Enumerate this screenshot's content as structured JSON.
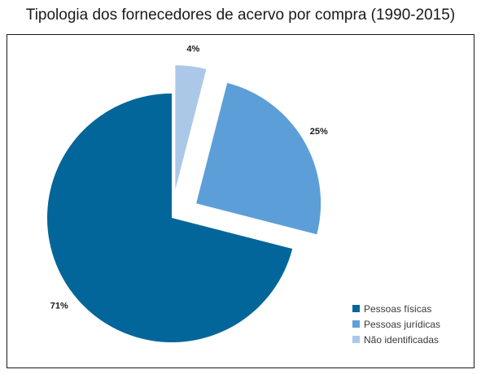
{
  "title": "Tipologia dos fornecedores de acervo por compra (1990-2015)",
  "chart_data": {
    "type": "pie",
    "title": "Tipologia dos fornecedores de acervo por compra (1990-2015)",
    "slices": [
      {
        "name": "Pessoas físicas",
        "value": 71,
        "label": "71%",
        "color": "#02669a",
        "exploded": false
      },
      {
        "name": "Pessoas jurídicas",
        "value": 25,
        "label": "25%",
        "color": "#5c9fd8",
        "exploded": true
      },
      {
        "name": "Não identificadas",
        "value": 4,
        "label": "4%",
        "color": "#abc8e9",
        "exploded": true
      }
    ],
    "legend_position": "bottom-right"
  }
}
